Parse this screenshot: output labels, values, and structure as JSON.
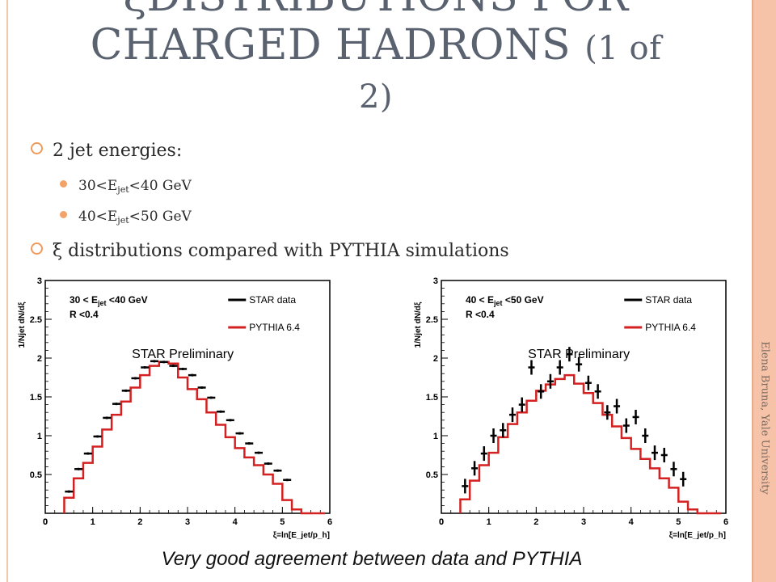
{
  "title_line1": "ξDISTRIBUTIONS FOR",
  "title_line2": "CHARGED HADRONS",
  "title_suffix": "(1 of",
  "title_line3": "2)",
  "bullets": {
    "b1": "2 jet energies:",
    "s1_pre": "30<E",
    "s1_sub": "jet",
    "s1_post": "<40 GeV",
    "s2_pre": "40<E",
    "s2_sub": "jet",
    "s2_post": "<50 GeV",
    "b2": "ξ distributions compared with PYTHIA simulations"
  },
  "side_text": "Elena Bruna, Yale University",
  "caption": "Very good agreement between data and PYTHIA",
  "chart_data": [
    {
      "type": "line",
      "ylabel": "1/Njet dN/dξ",
      "xlabel": "ξ=ln[E_jet/p_h]",
      "xlim": [
        0,
        6
      ],
      "ylim": [
        0,
        3
      ],
      "xticks": [
        0,
        1,
        2,
        3,
        4,
        5,
        6
      ],
      "yticks": [
        0.5,
        1,
        1.5,
        2,
        2.5,
        3
      ],
      "cut_label": "30 < E_jet <40 GeV",
      "r_label": "R <0.4",
      "preliminary": "STAR Preliminary",
      "legend": [
        "STAR data",
        "PYTHIA 6.4"
      ],
      "colors": {
        "data": "#000000",
        "pythia": "#d42020"
      },
      "x": [
        0.5,
        0.7,
        0.9,
        1.1,
        1.3,
        1.5,
        1.7,
        1.9,
        2.1,
        2.3,
        2.5,
        2.7,
        2.9,
        3.1,
        3.3,
        3.5,
        3.7,
        3.9,
        4.1,
        4.3,
        4.5,
        4.7,
        4.9,
        5.1
      ],
      "data_values": [
        0.28,
        0.57,
        0.77,
        0.99,
        1.23,
        1.41,
        1.58,
        1.74,
        1.88,
        1.96,
        1.95,
        1.9,
        1.86,
        1.78,
        1.62,
        1.49,
        1.31,
        1.2,
        1.03,
        0.9,
        0.78,
        0.64,
        0.55,
        0.43
      ],
      "pythia_edges": [
        0.4,
        0.6,
        0.8,
        1.0,
        1.2,
        1.4,
        1.6,
        1.8,
        2.0,
        2.2,
        2.4,
        2.6,
        2.8,
        3.0,
        3.2,
        3.4,
        3.6,
        3.8,
        4.0,
        4.2,
        4.4,
        4.6,
        4.8,
        5.0,
        5.2,
        5.4
      ],
      "pythia_values": [
        0.2,
        0.45,
        0.65,
        0.86,
        1.08,
        1.27,
        1.44,
        1.62,
        1.78,
        1.9,
        1.95,
        1.93,
        1.75,
        1.6,
        1.47,
        1.3,
        1.14,
        0.98,
        0.84,
        0.72,
        0.62,
        0.5,
        0.38,
        0.17,
        0.05
      ]
    },
    {
      "type": "line",
      "ylabel": "1/Njet dN/dξ",
      "xlabel": "ξ=ln[E_jet/p_h]",
      "xlim": [
        0,
        6
      ],
      "ylim": [
        0,
        3
      ],
      "xticks": [
        0,
        1,
        2,
        3,
        4,
        5,
        6
      ],
      "yticks": [
        0.5,
        1,
        1.5,
        2,
        2.5,
        3
      ],
      "cut_label": "40 < E_jet <50 GeV",
      "r_label": "R <0.4",
      "preliminary": "STAR Preliminary",
      "legend": [
        "STAR data",
        "PYTHIA 6.4"
      ],
      "colors": {
        "data": "#000000",
        "pythia": "#d42020"
      },
      "x": [
        0.5,
        0.7,
        0.9,
        1.1,
        1.3,
        1.5,
        1.7,
        1.9,
        2.1,
        2.3,
        2.5,
        2.7,
        2.9,
        3.1,
        3.3,
        3.5,
        3.7,
        3.9,
        4.1,
        4.3,
        4.5,
        4.7,
        4.9,
        5.1
      ],
      "data_values": [
        0.35,
        0.58,
        0.77,
        1.0,
        1.07,
        1.27,
        1.4,
        1.88,
        1.57,
        1.7,
        1.88,
        2.05,
        1.92,
        1.68,
        1.57,
        1.3,
        1.38,
        1.13,
        1.24,
        1.0,
        0.78,
        0.75,
        0.57,
        0.44
      ],
      "pythia_edges": [
        0.4,
        0.6,
        0.8,
        1.0,
        1.2,
        1.4,
        1.6,
        1.8,
        2.0,
        2.2,
        2.4,
        2.6,
        2.8,
        3.0,
        3.2,
        3.4,
        3.6,
        3.8,
        4.0,
        4.2,
        4.4,
        4.6,
        4.8,
        5.0,
        5.2,
        5.4
      ],
      "pythia_values": [
        0.18,
        0.42,
        0.62,
        0.78,
        0.98,
        1.15,
        1.3,
        1.45,
        1.58,
        1.66,
        1.73,
        1.78,
        1.67,
        1.55,
        1.42,
        1.27,
        1.12,
        0.97,
        0.83,
        0.7,
        0.58,
        0.45,
        0.33,
        0.15,
        0.05
      ]
    }
  ]
}
